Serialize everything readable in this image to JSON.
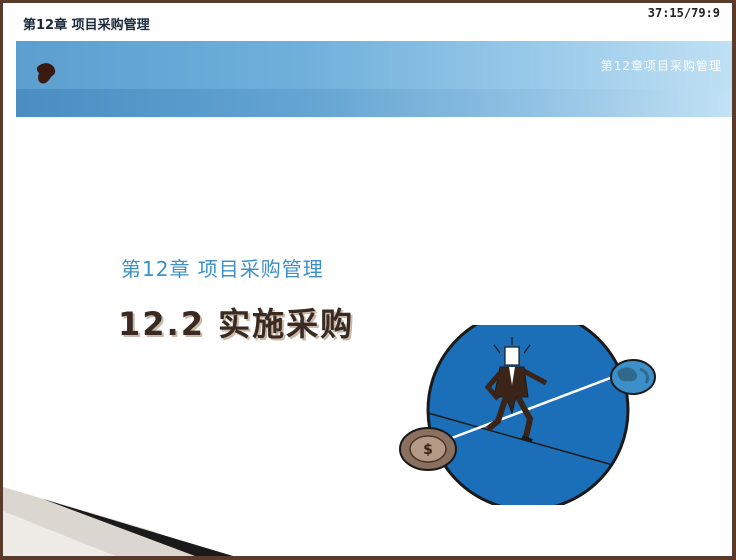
{
  "window": {
    "title": "第12章 项目采购管理",
    "timer": "37:15/79:9"
  },
  "banner": {
    "chapter_title": "第12章项目采购管理",
    "logo": "ink-blot-logo"
  },
  "slide": {
    "subtitle": "第12章  项目采购管理",
    "heading": "12.2 实施采购",
    "illustration": "businessman-balancing-between-globe-and-coin"
  },
  "colors": {
    "banner": "#6fb0db",
    "subtitle": "#3c8fc8",
    "heading": "#3a2a22",
    "circle": "#1a6fb8",
    "frame": "#5a3a2a"
  }
}
